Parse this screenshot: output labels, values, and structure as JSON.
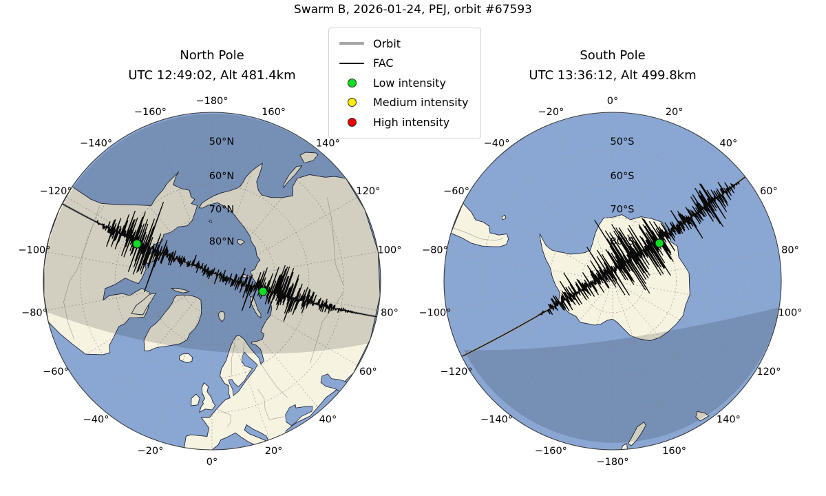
{
  "title": "Swarm B, 2026-01-24, PEJ, orbit #67593",
  "colors": {
    "ocean": "#8aa7d3",
    "land": "#f7f3e1",
    "coastline": "#1e2438",
    "border": "#a9a9a0",
    "grid": "#999999",
    "orbit": "#999999",
    "fac": "#0a0a0a",
    "night_shade": "rgba(18,20,26,0.16)",
    "low": "#0bdf20",
    "medium": "#ffeb00",
    "high": "#ee0000"
  },
  "legend": {
    "items": [
      {
        "label": "Orbit",
        "type": "line",
        "color": "#a8a8a8",
        "lw": 4
      },
      {
        "label": "FAC",
        "type": "line",
        "color": "#000000",
        "lw": 1.5
      },
      {
        "label": "Low intensity",
        "type": "marker",
        "color": "#0bdf20"
      },
      {
        "label": "Medium intensity",
        "type": "marker",
        "color": "#ffeb00"
      },
      {
        "label": "High intensity",
        "type": "marker",
        "color": "#ee0000"
      }
    ]
  },
  "chart_data": {
    "type": "polar-orbit-map",
    "suptitle": "Swarm B, 2026-01-24, PEJ, orbit #67593",
    "projection": "polar stereographic, boundary 40 deg, graticule 10 deg lat / 20 deg lon, dashed",
    "panels": [
      {
        "id": "north",
        "title": "North Pole",
        "subtitle": "UTC 12:49:02, Alt 481.4km",
        "hemisphere": "N",
        "boundary_lat": 40,
        "lat_circles": [
          {
            "lat": 50,
            "text": "50°N"
          },
          {
            "lat": 60,
            "text": "60°N"
          },
          {
            "lat": 70,
            "text": "70°N"
          },
          {
            "lat": 80,
            "text": "80°N"
          }
        ],
        "lon_labels": [
          {
            "lon": -180,
            "text": "−180°"
          },
          {
            "lon": -160,
            "text": "−160°"
          },
          {
            "lon": -140,
            "text": "−140°"
          },
          {
            "lon": -120,
            "text": "−120°"
          },
          {
            "lon": -100,
            "text": "−100°"
          },
          {
            "lon": -80,
            "text": "−80°"
          },
          {
            "lon": -60,
            "text": "−60°"
          },
          {
            "lon": -40,
            "text": "−40°"
          },
          {
            "lon": -20,
            "text": "−20°"
          },
          {
            "lon": 0,
            "text": "0°"
          },
          {
            "lon": 20,
            "text": "20°"
          },
          {
            "lon": 40,
            "text": "40°"
          },
          {
            "lon": 60,
            "text": "60°"
          },
          {
            "lon": 80,
            "text": "80°"
          },
          {
            "lon": 100,
            "text": "100°"
          },
          {
            "lon": 120,
            "text": "120°"
          },
          {
            "lon": 140,
            "text": "140°"
          },
          {
            "lon": 160,
            "text": "160°"
          }
        ],
        "orbit": {
          "p0": [
            -228,
            -118
          ],
          "c": [
            2,
            12
          ],
          "p1": [
            252,
            54
          ]
        },
        "fac": {
          "seed": 7,
          "range": [
            0.13,
            0.93
          ],
          "clusters": [
            {
              "t": 0.26,
              "amp": 52,
              "w": 0.055
            },
            {
              "t": 0.5,
              "amp": 11,
              "w": 0.1
            },
            {
              "t": 0.68,
              "amp": 48,
              "w": 0.055
            },
            {
              "t": 0.82,
              "amp": 10,
              "w": 0.05
            }
          ]
        },
        "markers": [
          {
            "intensity": "low",
            "d": [
              -109,
              -54
            ]
          },
          {
            "intensity": "low",
            "d": [
              74,
              15
            ]
          }
        ],
        "night": {
          "p0": [
            -240,
            45
          ],
          "c": [
            5,
            136
          ],
          "p1": [
            230,
            90
          ],
          "side": "top"
        }
      },
      {
        "id": "south",
        "title": "South Pole",
        "subtitle": "UTC 13:36:12, Alt 499.8km",
        "hemisphere": "S",
        "boundary_lat": -40,
        "lat_circles": [
          {
            "lat": -50,
            "text": "50°S"
          },
          {
            "lat": -60,
            "text": "60°S"
          },
          {
            "lat": -70,
            "text": "70°S"
          },
          {
            "lat": -80,
            "text": "80°S"
          }
        ],
        "lon_labels": [
          {
            "lon": 0,
            "text": "0°"
          },
          {
            "lon": 20,
            "text": "20°"
          },
          {
            "lon": 40,
            "text": "40°"
          },
          {
            "lon": 60,
            "text": "60°"
          },
          {
            "lon": 80,
            "text": "80°"
          },
          {
            "lon": 100,
            "text": "100°"
          },
          {
            "lon": 120,
            "text": "120°"
          },
          {
            "lon": 140,
            "text": "140°"
          },
          {
            "lon": 160,
            "text": "160°"
          },
          {
            "lon": -180,
            "text": "−180°"
          },
          {
            "lon": -160,
            "text": "−160°"
          },
          {
            "lon": -140,
            "text": "−140°"
          },
          {
            "lon": -120,
            "text": "−120°"
          },
          {
            "lon": -100,
            "text": "−100°"
          },
          {
            "lon": -80,
            "text": "−80°"
          },
          {
            "lon": -60,
            "text": "−60°"
          },
          {
            "lon": -40,
            "text": "−40°"
          },
          {
            "lon": -20,
            "text": "−20°"
          }
        ],
        "orbit": {
          "p0": [
            -218,
            109
          ],
          "c": [
            -12,
            6
          ],
          "p1": [
            195,
            -153
          ]
        },
        "fac": {
          "seed": 13,
          "range": [
            0.27,
            0.97
          ],
          "clusters": [
            {
              "t": 0.36,
              "amp": 16,
              "w": 0.05
            },
            {
              "t": 0.6,
              "amp": 62,
              "w": 0.095
            },
            {
              "t": 0.87,
              "amp": 38,
              "w": 0.045
            }
          ]
        },
        "markers": [
          {
            "intensity": "low",
            "d": [
              68,
              -55
            ]
          }
        ],
        "night": {
          "p0": [
            -216,
            100
          ],
          "c": [
            -33,
            105
          ],
          "p1": [
            243,
            38
          ],
          "side": "bottom"
        }
      }
    ]
  }
}
